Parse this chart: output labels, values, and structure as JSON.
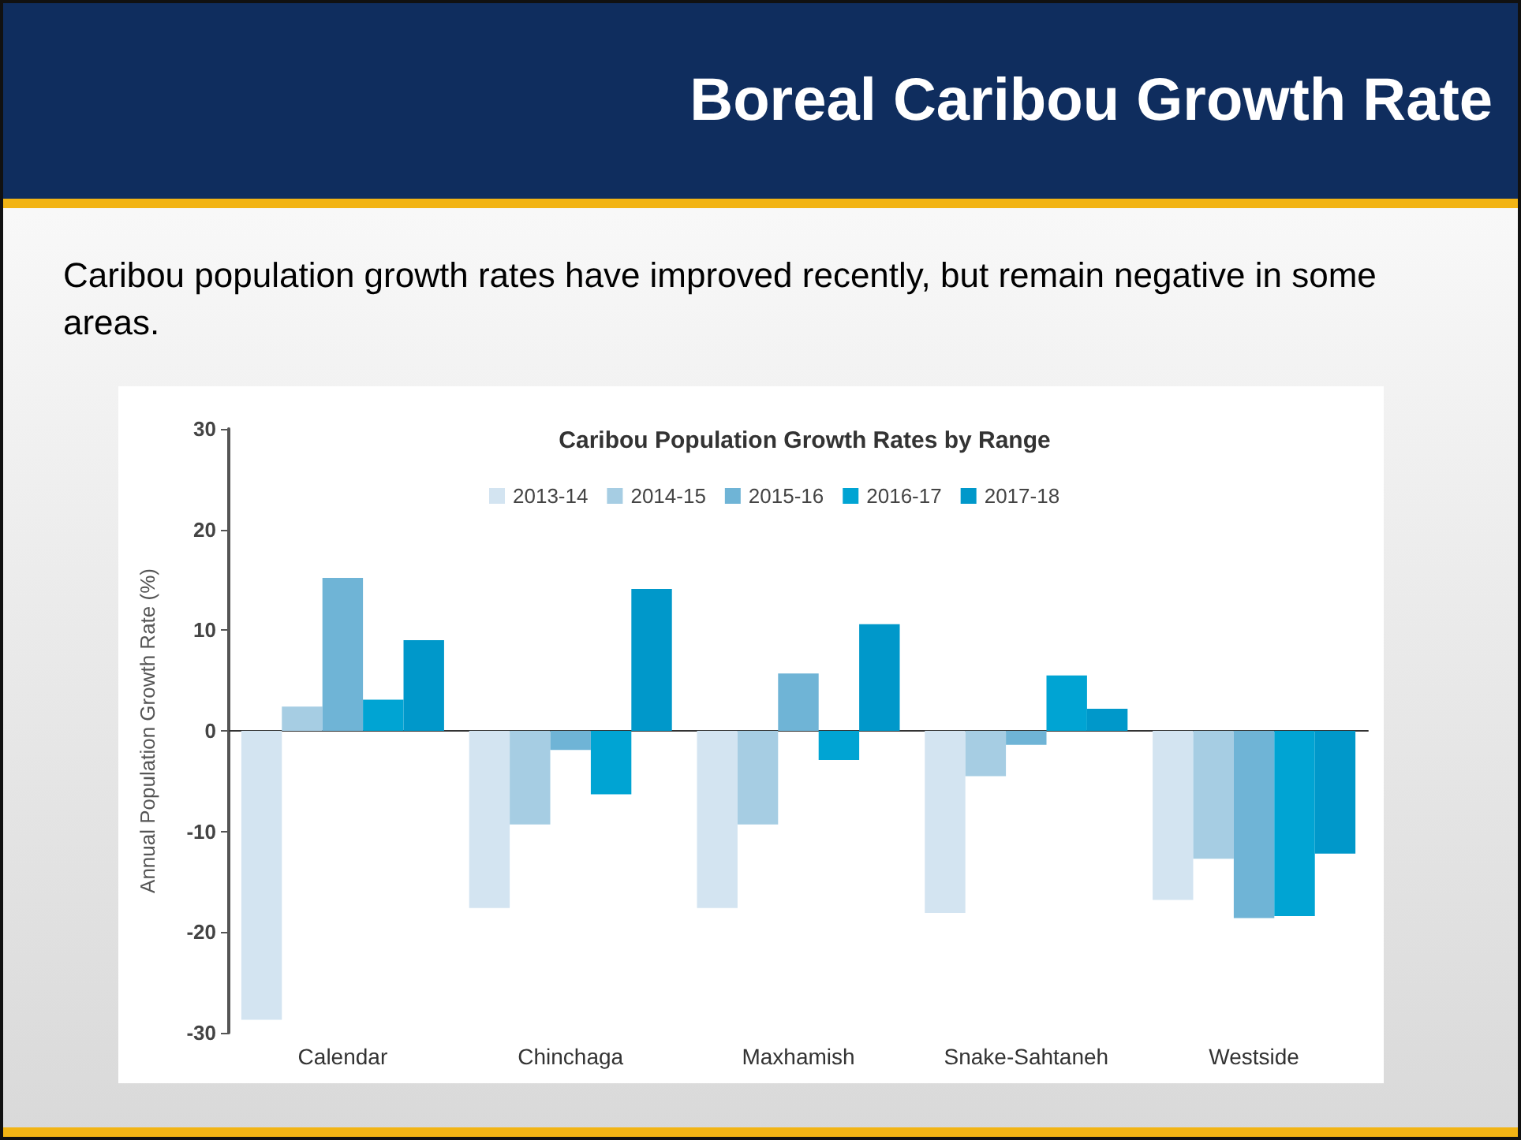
{
  "chart_data": {
    "type": "bar",
    "title": "Boreal Caribou Growth Rate",
    "subtitle": "Caribou population growth rates have improved recently, but remain negative in some areas.",
    "annotations": [
      "Caribou Population Growth Rates by Range"
    ],
    "ylabel": "Annual Population Growth Rate (%)",
    "categories": [
      "Calendar",
      "Chinchaga",
      "Maxhamish",
      "Snake-Sahtaneh",
      "Westside"
    ],
    "series": [
      {
        "name": "2013-14",
        "color": "#d3e4f1",
        "values": [
          -28.7,
          -17.6,
          -17.6,
          -18.1,
          -16.8
        ]
      },
      {
        "name": "2014-15",
        "color": "#a6cde3",
        "values": [
          2.4,
          -9.3,
          -9.3,
          -4.5,
          -12.7
        ]
      },
      {
        "name": "2015-16",
        "color": "#6fb4d6",
        "values": [
          15.2,
          -1.9,
          5.7,
          -1.4,
          -18.6
        ]
      },
      {
        "name": "2016-17",
        "color": "#00a4d3",
        "values": [
          3.1,
          -6.3,
          -2.9,
          5.5,
          -18.4
        ]
      },
      {
        "name": "2017-18",
        "color": "#0098ca",
        "values": [
          9.0,
          14.1,
          10.6,
          2.2,
          -12.2
        ]
      }
    ],
    "ylim": [
      -30,
      30
    ],
    "yticks": [
      -30,
      -20,
      -10,
      0,
      10,
      20,
      30
    ],
    "legend": "top"
  }
}
